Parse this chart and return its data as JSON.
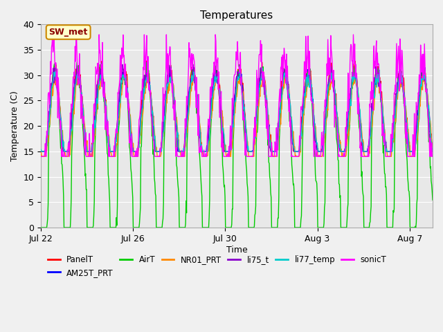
{
  "title": "Temperatures",
  "xlabel": "Time",
  "ylabel": "Temperature (C)",
  "annotation": "SW_met",
  "ylim": [
    0,
    40
  ],
  "x_ticks_labels": [
    "Jul 22",
    "Jul 26",
    "Jul 30",
    "Aug 3",
    "Aug 7"
  ],
  "x_ticks_positions": [
    0,
    4,
    8,
    12,
    16
  ],
  "bg_color": "#e8e8e8",
  "fig_color": "#f0f0f0",
  "series": {
    "PanelT": {
      "color": "#ff0000"
    },
    "AM25T_PRT": {
      "color": "#0000ff"
    },
    "AirT": {
      "color": "#00cc00"
    },
    "NR01_PRT": {
      "color": "#ff8800"
    },
    "li75_t": {
      "color": "#8800cc"
    },
    "li77_temp": {
      "color": "#00cccc"
    },
    "sonicT": {
      "color": "#ff00ff"
    }
  },
  "n_days": 17,
  "points_per_day": 48
}
